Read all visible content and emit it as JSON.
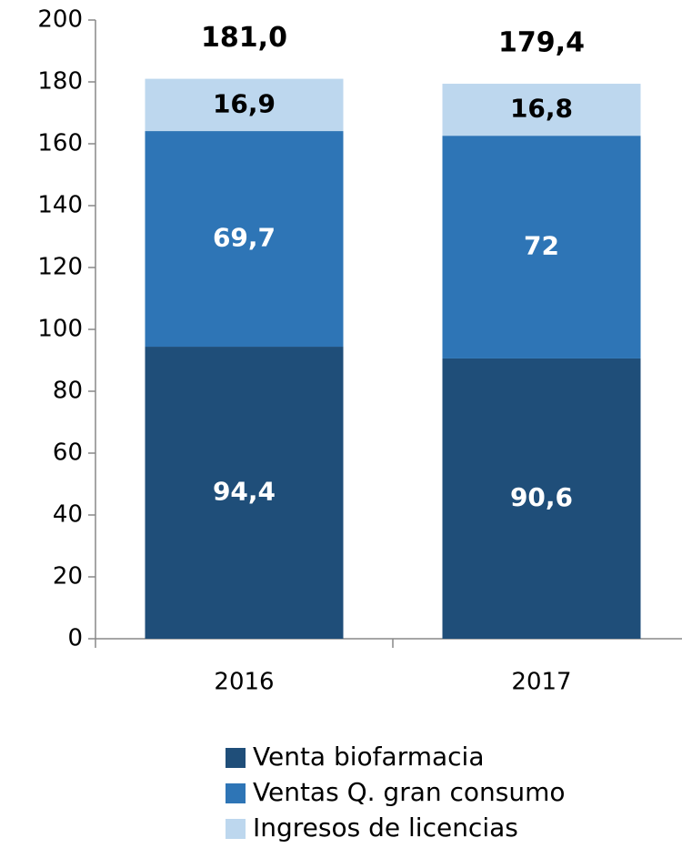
{
  "chart_data": {
    "type": "stacked_bar",
    "categories": [
      "2016",
      "2017"
    ],
    "series": [
      {
        "name": "Venta biofarmacia",
        "color": "#1f4e79",
        "label_color": "#ffffff",
        "values": [
          94.4,
          90.6
        ],
        "value_labels": [
          "94,4",
          "90,6"
        ]
      },
      {
        "name": "Ventas Q. gran consumo",
        "color": "#2e75b6",
        "label_color": "#ffffff",
        "values": [
          69.7,
          72
        ],
        "value_labels": [
          "69,7",
          "72"
        ]
      },
      {
        "name": "Ingresos de licencias",
        "color": "#bdd7ee",
        "label_color": "#000000",
        "values": [
          16.9,
          16.8
        ],
        "value_labels": [
          "16,9",
          "16,8"
        ]
      }
    ],
    "totals": {
      "values": [
        181.0,
        179.4
      ],
      "value_labels": [
        "181,0",
        "179,4"
      ]
    },
    "ylim": [
      0,
      200
    ],
    "yticks": [
      0,
      20,
      40,
      60,
      80,
      100,
      120,
      140,
      160,
      180,
      200
    ],
    "grid": false,
    "legend": "bottom"
  }
}
